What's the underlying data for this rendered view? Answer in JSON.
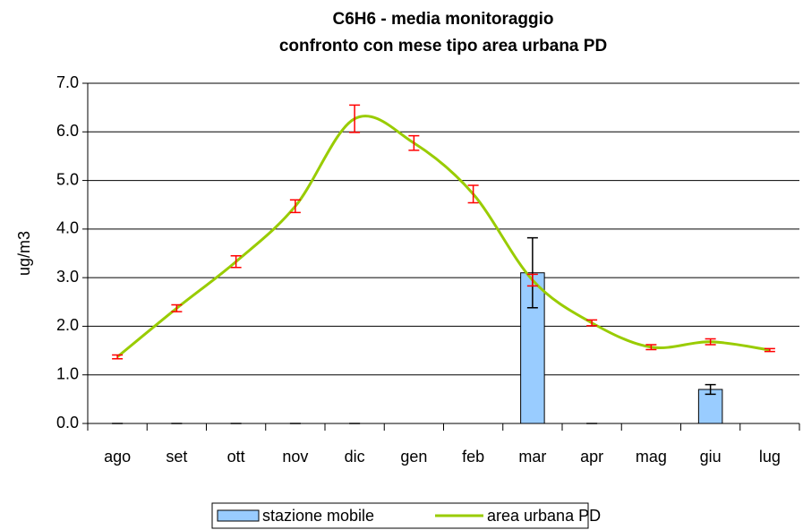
{
  "chart_data": {
    "type": "bar-line",
    "title_lines": [
      "C6H6 -  media monitoraggio",
      "confronto con mese tipo area urbana PD"
    ],
    "y_label": "ug/m3",
    "categories": [
      "ago",
      "set",
      "ott",
      "nov",
      "dic",
      "gen",
      "feb",
      "mar",
      "apr",
      "mag",
      "giu",
      "lug"
    ],
    "series": [
      {
        "name": "stazione mobile",
        "type": "bar",
        "color": "#99ccff",
        "error_color": "#000000",
        "values": [
          0,
          0,
          0,
          0,
          0,
          null,
          null,
          3.1,
          0,
          null,
          0.7,
          null
        ],
        "errors": [
          0,
          0,
          0,
          0,
          0,
          null,
          null,
          0.72,
          0,
          null,
          0.1,
          null
        ]
      },
      {
        "name": "area urbana PD",
        "type": "line",
        "color": "#99cc00",
        "error_color": "#ff0000",
        "values": [
          1.37,
          2.37,
          3.33,
          4.47,
          6.27,
          5.77,
          4.72,
          2.95,
          2.07,
          1.57,
          1.68,
          1.51
        ],
        "errors": [
          0.04,
          0.07,
          0.12,
          0.13,
          0.28,
          0.15,
          0.18,
          0.12,
          0.06,
          0.05,
          0.06,
          0.03
        ]
      }
    ],
    "ylim": [
      0,
      7
    ],
    "yticks": [
      {
        "value": 0,
        "label": "0.0"
      },
      {
        "value": 1,
        "label": "1.0"
      },
      {
        "value": 2,
        "label": "2.0"
      },
      {
        "value": 3,
        "label": "3.0"
      },
      {
        "value": 4,
        "label": "4.0"
      },
      {
        "value": 5,
        "label": "5.0"
      },
      {
        "value": 6,
        "label": "6.0"
      },
      {
        "value": 7,
        "label": "7.0"
      }
    ],
    "grid": true,
    "legend": "bottom"
  }
}
